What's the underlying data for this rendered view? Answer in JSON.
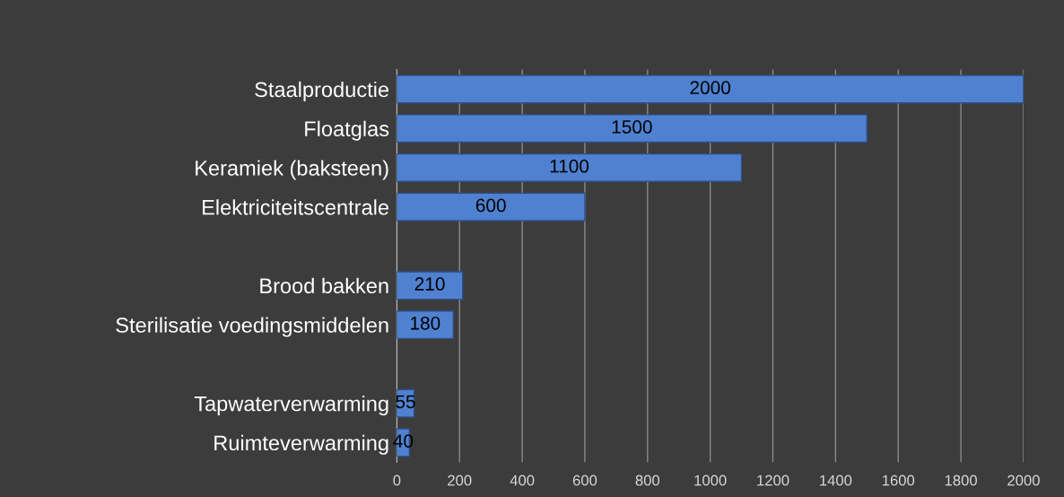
{
  "chart_data": {
    "type": "bar",
    "orientation": "horizontal",
    "categories": [
      "Staalproductie",
      "Floatglas",
      "Keramiek (baksteen)",
      "Elektriciteitscentrale",
      null,
      "Brood bakken",
      "Sterilisatie voedingsmiddelen",
      null,
      "Tapwaterverwarming",
      "Ruimteverwarming"
    ],
    "values": [
      2000,
      1500,
      1100,
      600,
      null,
      210,
      180,
      null,
      55,
      40
    ],
    "color": "#4f81d0",
    "data_labels": true,
    "xlim": [
      0,
      2000
    ],
    "xticks": [
      0,
      200,
      400,
      600,
      800,
      1000,
      1200,
      1400,
      1600,
      1800,
      2000
    ],
    "grid": "x",
    "legend": false
  }
}
